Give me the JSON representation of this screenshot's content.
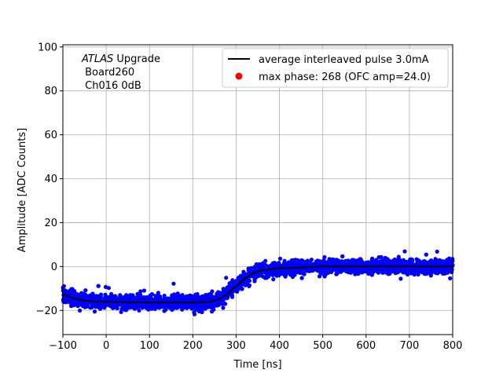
{
  "chart_data": {
    "type": "scatter",
    "xlabel": "Time [ns]",
    "ylabel": "Amplitude [ADC Counts]",
    "xlim": [
      -100,
      800
    ],
    "ylim": [
      -31,
      101
    ],
    "xticks": [
      -100,
      0,
      100,
      200,
      300,
      400,
      500,
      600,
      700,
      800
    ],
    "yticks": [
      -20,
      0,
      20,
      40,
      60,
      80,
      100
    ],
    "grid": true,
    "legend_position": "top-right",
    "annotation": {
      "italic": "ATLAS",
      "rest": " Upgrade",
      "line2": " Board260",
      "line3": " Ch016 0dB"
    },
    "series": [
      {
        "name": "average interleaved pulse 3.0mA",
        "kind": "line",
        "color": "#000000",
        "x": [
          -100,
          -75,
          -50,
          -25,
          0,
          50,
          100,
          150,
          200,
          240,
          260,
          280,
          300,
          320,
          340,
          360,
          380,
          400,
          450,
          500,
          600,
          700,
          800
        ],
        "y": [
          -12.5,
          -14.5,
          -15.5,
          -16,
          -16,
          -16.2,
          -16.3,
          -16.3,
          -16.3,
          -16,
          -15,
          -12.5,
          -9,
          -5.5,
          -3,
          -1.8,
          -1.2,
          -0.8,
          -0.4,
          0,
          0,
          0,
          0
        ]
      },
      {
        "name": "samples",
        "kind": "scatter",
        "color": "#0000ff",
        "note": "dense cloud of ADC samples around the average pulse, spread about ±4 counts"
      },
      {
        "name": "max phase: 268 (OFC amp=24.0)",
        "kind": "marker",
        "color": "#ff0000",
        "x": [],
        "y": []
      }
    ]
  }
}
